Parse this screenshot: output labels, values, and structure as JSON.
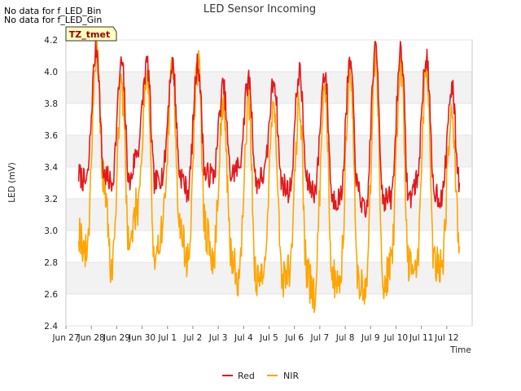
{
  "notices": [
    "No data for f_LED_Bin",
    "No data for f_LED_Gin"
  ],
  "tag_label": "TZ_tmet",
  "chart_data": {
    "type": "line",
    "title": "LED Sensor Incoming",
    "xlabel": "Time",
    "ylabel": "LED (mV)",
    "xlim": [
      0,
      16
    ],
    "ylim": [
      2.4,
      4.2
    ],
    "x_ticks": [
      {
        "value": 0,
        "label": "Jun 27"
      },
      {
        "value": 1,
        "label": "Jun 28"
      },
      {
        "value": 2,
        "label": "Jun 29"
      },
      {
        "value": 3,
        "label": "Jun 30"
      },
      {
        "value": 4,
        "label": "Jul 1"
      },
      {
        "value": 5,
        "label": "Jul 2"
      },
      {
        "value": 6,
        "label": "Jul 3"
      },
      {
        "value": 7,
        "label": "Jul 4"
      },
      {
        "value": 8,
        "label": "Jul 5"
      },
      {
        "value": 9,
        "label": "Jul 6"
      },
      {
        "value": 10,
        "label": "Jul 7"
      },
      {
        "value": 11,
        "label": "Jul 8"
      },
      {
        "value": 12,
        "label": "Jul 9"
      },
      {
        "value": 13,
        "label": "Jul 10"
      },
      {
        "value": 14,
        "label": "Jul 11"
      },
      {
        "value": 15,
        "label": "Jul 12"
      }
    ],
    "y_ticks": [
      "2.4",
      "2.6",
      "2.8",
      "3.0",
      "3.2",
      "3.4",
      "3.6",
      "3.8",
      "4.0",
      "4.2"
    ],
    "x_days": [
      0.5,
      0.8,
      1.2,
      1.5,
      1.8,
      2.2,
      2.5,
      2.8,
      3.2,
      3.5,
      3.8,
      4.2,
      4.5,
      4.8,
      5.2,
      5.5,
      5.8,
      6.2,
      6.5,
      6.8,
      7.2,
      7.5,
      7.8,
      8.2,
      8.5,
      8.8,
      9.2,
      9.5,
      9.8,
      10.2,
      10.5,
      10.8,
      11.2,
      11.5,
      11.8,
      12.2,
      12.5,
      12.8,
      13.2,
      13.5,
      13.8,
      14.2,
      14.5,
      14.8,
      15.2,
      15.5
    ],
    "series": [
      {
        "name": "Red",
        "color": "#e31a1c",
        "values": [
          3.35,
          3.3,
          4.15,
          3.35,
          3.3,
          4.05,
          3.3,
          3.5,
          4.05,
          3.3,
          3.35,
          4.05,
          3.35,
          3.25,
          4.05,
          3.35,
          3.35,
          3.9,
          3.35,
          3.4,
          3.95,
          3.3,
          3.35,
          3.95,
          3.3,
          3.25,
          4.0,
          3.3,
          3.25,
          4.0,
          3.2,
          3.2,
          4.05,
          3.25,
          3.1,
          4.15,
          3.2,
          3.2,
          4.15,
          3.2,
          3.3,
          4.1,
          3.25,
          3.2,
          3.9,
          3.3
        ]
      },
      {
        "name": "NIR",
        "color": "#ffa500",
        "values": [
          3.0,
          2.85,
          4.1,
          3.3,
          2.75,
          3.9,
          2.9,
          3.15,
          4.0,
          2.75,
          3.05,
          4.0,
          3.0,
          2.8,
          4.05,
          3.0,
          2.8,
          3.8,
          2.85,
          2.7,
          3.8,
          2.65,
          2.8,
          3.8,
          2.7,
          2.75,
          3.8,
          2.7,
          2.6,
          3.95,
          2.7,
          2.7,
          4.05,
          2.7,
          2.6,
          4.1,
          2.65,
          2.8,
          4.05,
          2.8,
          2.75,
          4.05,
          2.8,
          2.8,
          3.75,
          2.9
        ]
      }
    ],
    "legend": {
      "position": "bottom",
      "entries": [
        "Red",
        "NIR"
      ]
    }
  }
}
